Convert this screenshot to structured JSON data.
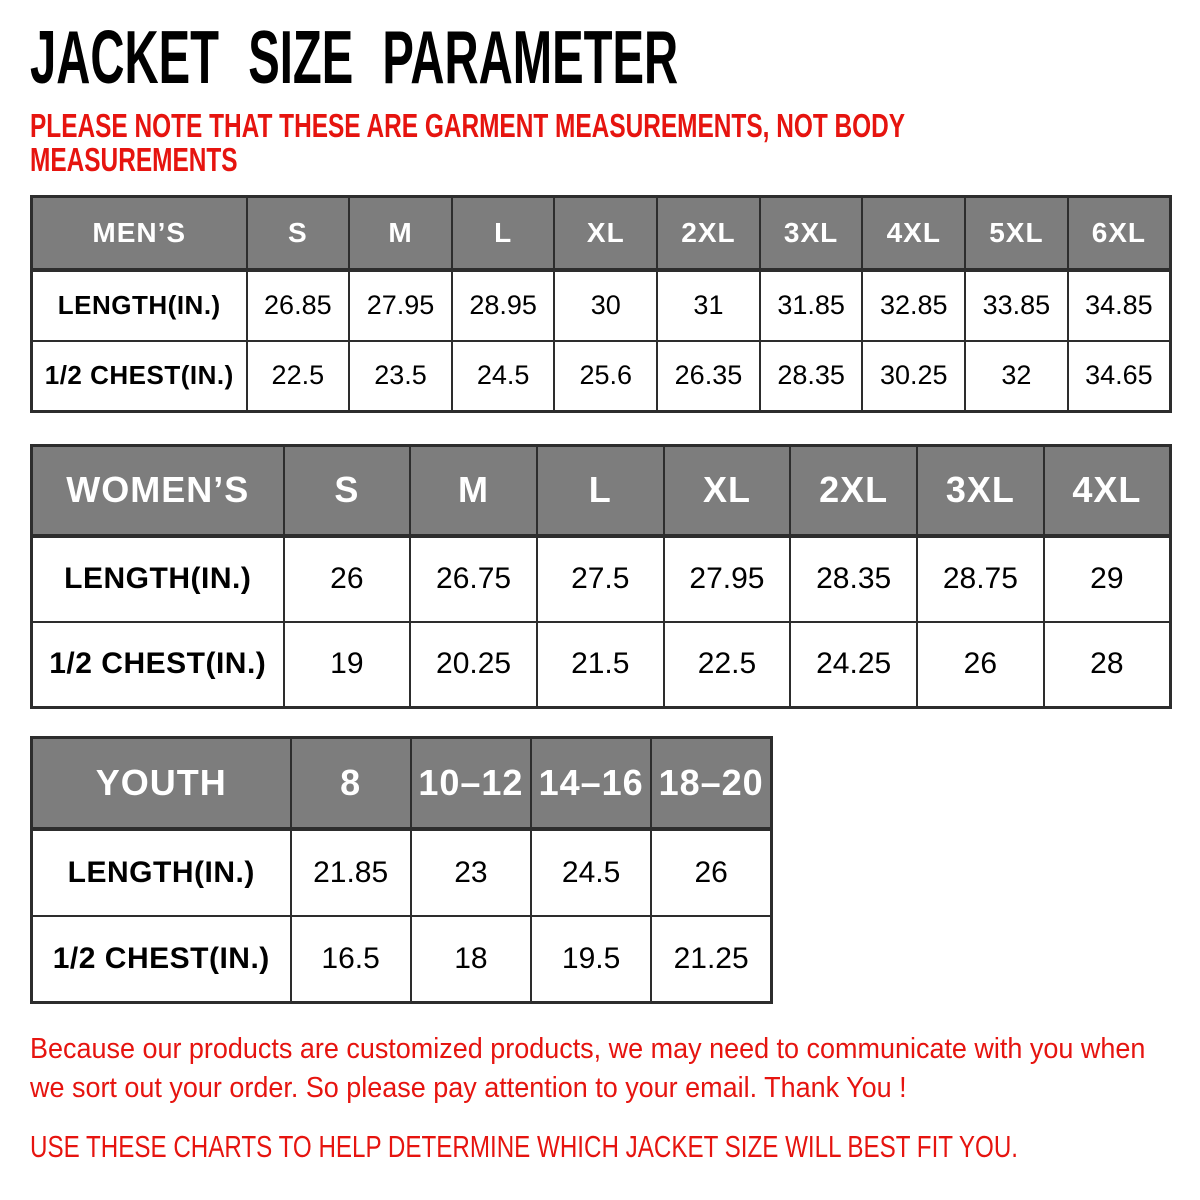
{
  "title": "JACKET SIZE PARAMETER",
  "note": "PLEASE NOTE THAT THESE ARE GARMENT MEASUREMENTS, NOT BODY MEASUREMENTS",
  "chart_data": [
    {
      "type": "table",
      "id": "mens",
      "group_label": "MEN’S",
      "columns": [
        "S",
        "M",
        "L",
        "XL",
        "2XL",
        "3XL",
        "4XL",
        "5XL",
        "6XL"
      ],
      "rows": [
        {
          "label": "LENGTH(IN.)",
          "values": [
            26.85,
            27.95,
            28.95,
            30,
            31,
            31.85,
            32.85,
            33.85,
            34.85
          ]
        },
        {
          "label": "1/2 CHEST(IN.)",
          "values": [
            22.5,
            23.5,
            24.5,
            25.6,
            26.35,
            28.35,
            30.25,
            32,
            34.65
          ]
        }
      ]
    },
    {
      "type": "table",
      "id": "womens",
      "group_label": "WOMEN’S",
      "columns": [
        "S",
        "M",
        "L",
        "XL",
        "2XL",
        "3XL",
        "4XL"
      ],
      "rows": [
        {
          "label": "LENGTH(IN.)",
          "values": [
            26,
            26.75,
            27.5,
            27.95,
            28.35,
            28.75,
            29
          ]
        },
        {
          "label": "1/2 CHEST(IN.)",
          "values": [
            19,
            20.25,
            21.5,
            22.5,
            24.25,
            26,
            28
          ]
        }
      ]
    },
    {
      "type": "table",
      "id": "youth",
      "group_label": "YOUTH",
      "columns": [
        "8",
        "10–12",
        "14–16",
        "18–20"
      ],
      "rows": [
        {
          "label": "LENGTH(IN.)",
          "values": [
            21.85,
            23,
            24.5,
            26
          ]
        },
        {
          "label": "1/2 CHEST(IN.)",
          "values": [
            16.5,
            18,
            19.5,
            21.25
          ]
        }
      ]
    }
  ],
  "footer": {
    "paragraph": "Because our products are customized products, we may need to communicate with you when we sort out your order. So please pay attention to your email. Thank You !",
    "instruction": "USE THESE CHARTS TO HELP DETERMINE WHICH JACKET SIZE WILL BEST FIT YOU."
  },
  "colors": {
    "accent_red": "#e6140f",
    "table_header_bg": "#7d7d7d",
    "table_header_text": "#ffffff",
    "table_border": "#2d2d2d",
    "title_text": "#000000"
  }
}
